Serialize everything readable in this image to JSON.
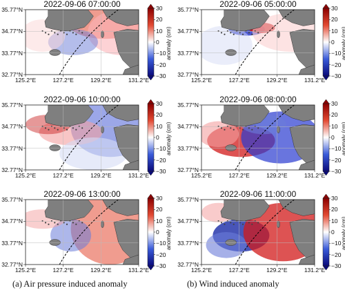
{
  "panels": [
    {
      "title": "2022-09-06 07:00:00",
      "pattern": "pressure-a"
    },
    {
      "title": "2022-09-06 05:00:00",
      "pattern": "wind-a"
    },
    {
      "title": "2022-09-06 10:00:00",
      "pattern": "pressure-b"
    },
    {
      "title": "2022-09-06 08:00:00",
      "pattern": "wind-b"
    },
    {
      "title": "2022-09-06 13:00:00",
      "pattern": "pressure-c"
    },
    {
      "title": "2022-09-06 11:00:00",
      "pattern": "wind-c"
    }
  ],
  "lat_ticks": [
    "35.77°N",
    "34.77°N",
    "33.77°N",
    "32.77°N"
  ],
  "lon_ticks": [
    "125.2°E",
    "127.2°E",
    "129.2°E",
    "131.2°E"
  ],
  "colorbar": {
    "ticks": [
      "30",
      "20",
      "10",
      "0",
      "−10",
      "−20",
      "−30"
    ],
    "label": "anomaly (cm)",
    "min": -30,
    "max": 30,
    "colors": {
      "high": "#b2182b",
      "mid": "#ffffff",
      "low": "#1a1aa6"
    }
  },
  "captions": {
    "left": "(a) Air pressure induced anomaly",
    "right": "(b) Wind induced anomaly"
  },
  "colors": {
    "land": "#7f7f7f",
    "track": "#000000"
  }
}
